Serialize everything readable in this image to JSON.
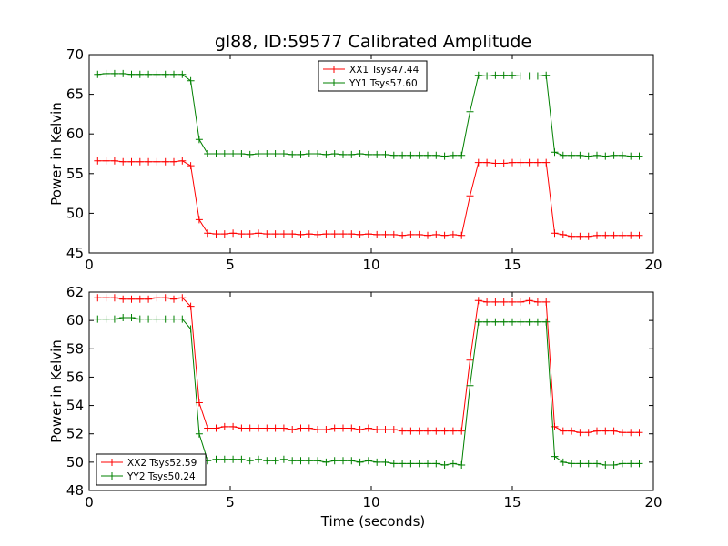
{
  "figure": {
    "title": "gl88, ID:59577 Calibrated Amplitude",
    "xlabel": "Time (seconds)"
  },
  "chart_data": [
    {
      "type": "line",
      "ylabel": "Power in Kelvin",
      "xlim": [
        0,
        20
      ],
      "ylim": [
        45,
        70
      ],
      "xticks": [
        "0",
        "5",
        "10",
        "15",
        "20"
      ],
      "yticks": [
        "45",
        "50",
        "55",
        "60",
        "65",
        "70"
      ],
      "legend_position": "top-center",
      "grid": false,
      "x": [
        0.3,
        0.6,
        0.9,
        1.2,
        1.5,
        1.8,
        2.1,
        2.4,
        2.7,
        3.0,
        3.3,
        3.6,
        3.9,
        4.2,
        4.5,
        4.8,
        5.1,
        5.4,
        5.7,
        6.0,
        6.3,
        6.6,
        6.9,
        7.2,
        7.5,
        7.8,
        8.1,
        8.4,
        8.7,
        9.0,
        9.3,
        9.6,
        9.9,
        10.2,
        10.5,
        10.8,
        11.1,
        11.4,
        11.7,
        12.0,
        12.3,
        12.6,
        12.9,
        13.2,
        13.5,
        13.8,
        14.1,
        14.4,
        14.7,
        15.0,
        15.3,
        15.6,
        15.9,
        16.2,
        16.5,
        16.8,
        17.1,
        17.4,
        17.7,
        18.0,
        18.3,
        18.6,
        18.9,
        19.2,
        19.5
      ],
      "series": [
        {
          "name": "XX1 Tsys47.44",
          "color": "#ff0000",
          "values": [
            56.6,
            56.6,
            56.6,
            56.5,
            56.5,
            56.5,
            56.5,
            56.5,
            56.5,
            56.5,
            56.6,
            56.0,
            49.2,
            47.5,
            47.4,
            47.4,
            47.5,
            47.4,
            47.4,
            47.5,
            47.4,
            47.4,
            47.4,
            47.4,
            47.3,
            47.4,
            47.3,
            47.4,
            47.4,
            47.4,
            47.4,
            47.3,
            47.4,
            47.3,
            47.3,
            47.3,
            47.2,
            47.3,
            47.3,
            47.2,
            47.3,
            47.2,
            47.3,
            47.2,
            52.2,
            56.4,
            56.4,
            56.3,
            56.3,
            56.4,
            56.4,
            56.4,
            56.4,
            56.4,
            47.5,
            47.3,
            47.1,
            47.1,
            47.1,
            47.2,
            47.2,
            47.2,
            47.2,
            47.2,
            47.2
          ]
        },
        {
          "name": "YY1 Tsys57.60",
          "color": "#008000",
          "values": [
            67.5,
            67.6,
            67.6,
            67.6,
            67.5,
            67.5,
            67.5,
            67.5,
            67.5,
            67.5,
            67.5,
            66.7,
            59.3,
            57.5,
            57.5,
            57.5,
            57.5,
            57.5,
            57.4,
            57.5,
            57.5,
            57.5,
            57.5,
            57.4,
            57.4,
            57.5,
            57.5,
            57.4,
            57.5,
            57.4,
            57.4,
            57.5,
            57.4,
            57.4,
            57.4,
            57.3,
            57.3,
            57.3,
            57.3,
            57.3,
            57.3,
            57.2,
            57.3,
            57.3,
            62.8,
            67.4,
            67.3,
            67.4,
            67.4,
            67.4,
            67.3,
            67.3,
            67.3,
            67.4,
            57.7,
            57.3,
            57.3,
            57.3,
            57.2,
            57.3,
            57.2,
            57.3,
            57.3,
            57.2,
            57.2
          ]
        }
      ]
    },
    {
      "type": "line",
      "ylabel": "Power in Kelvin",
      "xlabel": "Time (seconds)",
      "xlim": [
        0,
        20
      ],
      "ylim": [
        48,
        62
      ],
      "xticks": [
        "0",
        "5",
        "10",
        "15",
        "20"
      ],
      "yticks": [
        "48",
        "50",
        "52",
        "54",
        "56",
        "58",
        "60",
        "62"
      ],
      "legend_position": "bottom-left",
      "grid": false,
      "x": [
        0.3,
        0.6,
        0.9,
        1.2,
        1.5,
        1.8,
        2.1,
        2.4,
        2.7,
        3.0,
        3.3,
        3.6,
        3.9,
        4.2,
        4.5,
        4.8,
        5.1,
        5.4,
        5.7,
        6.0,
        6.3,
        6.6,
        6.9,
        7.2,
        7.5,
        7.8,
        8.1,
        8.4,
        8.7,
        9.0,
        9.3,
        9.6,
        9.9,
        10.2,
        10.5,
        10.8,
        11.1,
        11.4,
        11.7,
        12.0,
        12.3,
        12.6,
        12.9,
        13.2,
        13.5,
        13.8,
        14.1,
        14.4,
        14.7,
        15.0,
        15.3,
        15.6,
        15.9,
        16.2,
        16.5,
        16.8,
        17.1,
        17.4,
        17.7,
        18.0,
        18.3,
        18.6,
        18.9,
        19.2,
        19.5
      ],
      "series": [
        {
          "name": "XX2 Tsys52.59",
          "color": "#ff0000",
          "values": [
            61.6,
            61.6,
            61.6,
            61.5,
            61.5,
            61.5,
            61.5,
            61.6,
            61.6,
            61.5,
            61.6,
            61.0,
            54.2,
            52.4,
            52.4,
            52.5,
            52.5,
            52.4,
            52.4,
            52.4,
            52.4,
            52.4,
            52.4,
            52.3,
            52.4,
            52.4,
            52.3,
            52.3,
            52.4,
            52.4,
            52.4,
            52.3,
            52.4,
            52.3,
            52.3,
            52.3,
            52.2,
            52.2,
            52.2,
            52.2,
            52.2,
            52.2,
            52.2,
            52.2,
            57.2,
            61.4,
            61.3,
            61.3,
            61.3,
            61.3,
            61.3,
            61.4,
            61.3,
            61.3,
            52.5,
            52.2,
            52.2,
            52.1,
            52.1,
            52.2,
            52.2,
            52.2,
            52.1,
            52.1,
            52.1
          ]
        },
        {
          "name": "YY2 Tsys50.24",
          "color": "#008000",
          "values": [
            60.1,
            60.1,
            60.1,
            60.2,
            60.2,
            60.1,
            60.1,
            60.1,
            60.1,
            60.1,
            60.1,
            59.4,
            52.0,
            50.1,
            50.2,
            50.2,
            50.2,
            50.2,
            50.1,
            50.2,
            50.1,
            50.1,
            50.2,
            50.1,
            50.1,
            50.1,
            50.1,
            50.0,
            50.1,
            50.1,
            50.1,
            50.0,
            50.1,
            50.0,
            50.0,
            49.9,
            49.9,
            49.9,
            49.9,
            49.9,
            49.9,
            49.8,
            49.9,
            49.8,
            55.4,
            59.9,
            59.9,
            59.9,
            59.9,
            59.9,
            59.9,
            59.9,
            59.9,
            59.9,
            50.4,
            50.0,
            49.9,
            49.9,
            49.9,
            49.9,
            49.8,
            49.8,
            49.9,
            49.9,
            49.9
          ]
        }
      ]
    }
  ]
}
